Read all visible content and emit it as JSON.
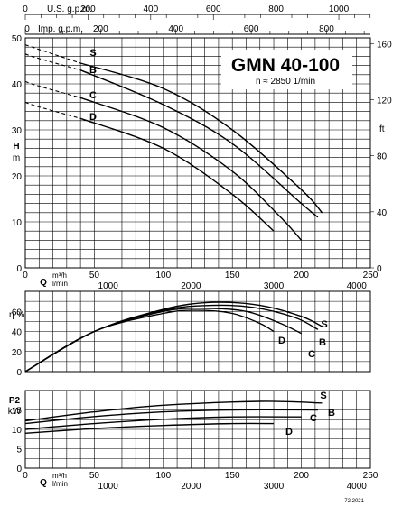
{
  "title": "GMN 40-100",
  "speed": "n ≈ 2850 1/min",
  "code": "72.2021",
  "axes": {
    "usgpm": {
      "label": "U.S. g.p.m.",
      "ticks": [
        0,
        200,
        400,
        600,
        800,
        1000
      ]
    },
    "impgpm": {
      "label": "Imp. g.p.m.",
      "ticks": [
        0,
        200,
        400,
        600,
        800
      ]
    },
    "q_m3h": {
      "label": "Q",
      "unit1": "m³/h",
      "ticks": [
        0,
        50,
        100,
        150,
        200,
        250
      ]
    },
    "q_lmin": {
      "unit2": "l/min",
      "ticks": [
        0,
        1000,
        2000,
        3000,
        4000
      ]
    },
    "h_m": {
      "label": "H",
      "unit": "m",
      "ticks": [
        0,
        10,
        20,
        30,
        40,
        50
      ]
    },
    "h_ft": {
      "unit": "ft",
      "ticks": [
        0,
        40,
        80,
        120,
        160
      ]
    },
    "eta": {
      "label": "η %",
      "ticks": [
        0,
        20,
        40,
        60
      ]
    },
    "p2": {
      "label": "P2",
      "unit": "kW",
      "ticks": [
        0,
        5,
        10,
        15
      ]
    }
  },
  "chart_data": [
    {
      "type": "line",
      "panel": "head",
      "xlim": [
        0,
        250
      ],
      "ylim": [
        0,
        50
      ],
      "xlabel": "Q m³/h",
      "ylabel": "H m",
      "grid": true,
      "series": [
        {
          "name": "S",
          "x": [
            0,
            10,
            40,
            100,
            150,
            200,
            215
          ],
          "y": [
            48.5,
            47.5,
            44.5,
            39,
            30,
            17,
            12
          ],
          "x_dashed_until": 40
        },
        {
          "name": "B",
          "x": [
            0,
            10,
            40,
            100,
            150,
            200,
            212
          ],
          "y": [
            46.5,
            45.5,
            43,
            35.5,
            27,
            14,
            11
          ],
          "x_dashed_until": 40
        },
        {
          "name": "C",
          "x": [
            0,
            10,
            40,
            100,
            150,
            185,
            200
          ],
          "y": [
            40.5,
            39.5,
            37,
            30.5,
            21,
            11,
            6
          ],
          "x_dashed_until": 40
        },
        {
          "name": "D",
          "x": [
            0,
            10,
            40,
            100,
            150,
            180
          ],
          "y": [
            36,
            35,
            32.5,
            26,
            16,
            8
          ],
          "x_dashed_until": 40
        }
      ]
    },
    {
      "type": "line",
      "panel": "efficiency",
      "xlim": [
        0,
        250
      ],
      "ylim": [
        0,
        80
      ],
      "xlabel": "Q m³/h",
      "ylabel": "η %",
      "grid": true,
      "series": [
        {
          "name": "S",
          "x": [
            0,
            50,
            100,
            135,
            170,
            200,
            215
          ],
          "y": [
            0,
            40,
            62,
            69,
            66,
            55,
            45
          ]
        },
        {
          "name": "B",
          "x": [
            0,
            50,
            100,
            135,
            165,
            195,
            212
          ],
          "y": [
            0,
            40,
            61,
            66,
            64,
            54,
            42
          ]
        },
        {
          "name": "C",
          "x": [
            0,
            50,
            100,
            130,
            160,
            185,
            200
          ],
          "y": [
            0,
            40,
            60,
            63,
            60,
            48,
            38
          ]
        },
        {
          "name": "D",
          "x": [
            0,
            50,
            100,
            125,
            150,
            170,
            180
          ],
          "y": [
            0,
            40,
            58,
            61,
            58,
            48,
            40
          ]
        }
      ]
    },
    {
      "type": "line",
      "panel": "power",
      "xlim": [
        0,
        250
      ],
      "ylim": [
        0,
        20
      ],
      "xlabel": "Q m³/h",
      "ylabel": "P2 kW",
      "grid": true,
      "series": [
        {
          "name": "S",
          "x": [
            0,
            50,
            100,
            170,
            215
          ],
          "y": [
            12.2,
            14.5,
            16.2,
            17.2,
            16.8
          ]
        },
        {
          "name": "B",
          "x": [
            0,
            50,
            100,
            150,
            212
          ],
          "y": [
            11.5,
            13.3,
            14.5,
            15.0,
            15.0
          ]
        },
        {
          "name": "C",
          "x": [
            0,
            50,
            100,
            150,
            200
          ],
          "y": [
            10.0,
            11.5,
            12.6,
            13.2,
            13.2
          ]
        },
        {
          "name": "D",
          "x": [
            0,
            50,
            100,
            150,
            180
          ],
          "y": [
            9.0,
            10.2,
            11.0,
            11.5,
            11.5
          ]
        }
      ]
    }
  ]
}
